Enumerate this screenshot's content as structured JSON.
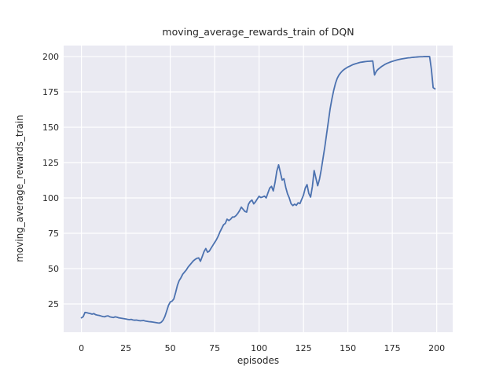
{
  "chart_data": {
    "type": "line",
    "title": "moving_average_rewards_train of DQN",
    "xlabel": "episodes",
    "ylabel": "moving_average_rewards_train",
    "x_ticks": [
      0,
      25,
      50,
      75,
      100,
      125,
      150,
      175,
      200
    ],
    "y_ticks": [
      25,
      50,
      75,
      100,
      125,
      150,
      175,
      200
    ],
    "xlim": [
      -10,
      209
    ],
    "ylim": [
      5,
      207.8
    ],
    "grid": true,
    "legend_position": "none",
    "colors": {
      "line": "#4C72B0",
      "axes_background": "#EAEAF2",
      "grid": "#FFFFFF",
      "text": "#262626",
      "figure_background": "#FFFFFF"
    },
    "series": [
      {
        "name": "moving_average_rewards_train",
        "x_start": 0,
        "x_step": 1,
        "y": [
          15.2,
          16.0,
          19.0,
          18.8,
          18.5,
          18.2,
          17.8,
          18.2,
          17.4,
          17.1,
          16.9,
          16.5,
          16.1,
          15.9,
          16.4,
          16.6,
          15.9,
          15.6,
          15.4,
          15.9,
          15.6,
          15.2,
          15.0,
          14.8,
          14.6,
          14.4,
          14.1,
          13.9,
          14.1,
          13.7,
          13.5,
          13.6,
          13.3,
          13.1,
          13.2,
          13.3,
          12.9,
          12.7,
          12.5,
          12.4,
          12.2,
          12.0,
          11.8,
          11.6,
          11.5,
          12.1,
          13.6,
          16.2,
          20.0,
          24.0,
          26.4,
          27.0,
          28.5,
          33.0,
          38.0,
          41.5,
          43.5,
          46.0,
          47.5,
          49.0,
          51.0,
          52.5,
          54.0,
          55.5,
          56.5,
          57.3,
          57.6,
          55.2,
          58.5,
          62.0,
          64.2,
          61.6,
          62.4,
          64.5,
          66.5,
          68.5,
          70.5,
          73.0,
          76.0,
          78.5,
          81.0,
          82.0,
          85.0,
          84.0,
          85.0,
          86.5,
          86.5,
          87.5,
          89.0,
          91.0,
          93.5,
          92.0,
          90.5,
          90.0,
          95.5,
          97.5,
          98.5,
          95.8,
          97.3,
          99.3,
          101.2,
          100.3,
          100.7,
          101.3,
          100.0,
          103.6,
          107.0,
          108.2,
          105.0,
          111.0,
          119.0,
          123.4,
          118.0,
          112.6,
          113.6,
          107.6,
          103.0,
          100.0,
          96.0,
          94.6,
          95.6,
          94.8,
          96.6,
          96.0,
          99.0,
          102.0,
          107.0,
          109.4,
          103.2,
          100.6,
          108.0,
          119.4,
          114.0,
          108.6,
          113.2,
          120.0,
          128.0,
          136.0,
          145.0,
          154.0,
          163.0,
          170.0,
          176.0,
          181.0,
          184.6,
          187.0,
          188.6,
          190.0,
          191.0,
          191.8,
          192.6,
          193.2,
          193.8,
          194.4,
          194.8,
          195.2,
          195.6,
          195.9,
          196.1,
          196.3,
          196.5,
          196.6,
          196.7,
          196.8,
          196.9,
          187.0,
          189.6,
          191.0,
          192.0,
          193.0,
          193.8,
          194.6,
          195.2,
          195.7,
          196.2,
          196.6,
          197.0,
          197.4,
          197.7,
          198.0,
          198.3,
          198.5,
          198.7,
          198.9,
          199.1,
          199.2,
          199.4,
          199.5,
          199.6,
          199.7,
          199.8,
          199.9,
          199.9,
          200.0,
          200.0,
          200.0,
          200.0,
          191.0,
          178.0,
          177.2
        ]
      }
    ]
  }
}
